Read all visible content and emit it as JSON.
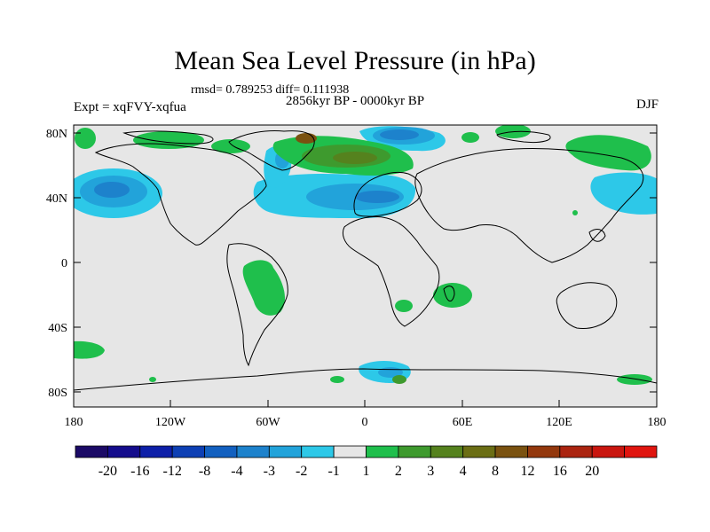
{
  "title": "Mean Sea Level Pressure (in hPa)",
  "stats": "rmsd= 0.789253 diff= 0.111938",
  "period": "2856kyr BP - 0000kyr BP",
  "experiment": "Expt = xqFVY-xqfua",
  "season": "DJF",
  "axes": {
    "lat_labels": [
      "80N",
      "40N",
      "0",
      "40S",
      "80S"
    ],
    "lon_labels": [
      "180",
      "120W",
      "60W",
      "0",
      "60E",
      "120E",
      "180"
    ]
  },
  "colorbar": {
    "colors": [
      "#1b0a66",
      "#140c8c",
      "#0d1fa8",
      "#0d3fb4",
      "#1260c0",
      "#1d82cc",
      "#22a3da",
      "#2dc8e8",
      "#e6e6e6",
      "#1fbf4c",
      "#3e9a2e",
      "#55821e",
      "#6b6e14",
      "#7a5210",
      "#93380d",
      "#ab2410",
      "#c9160f",
      "#e0150f"
    ],
    "labels": [
      "-20",
      "-16",
      "-12",
      "-8",
      "-4",
      "-3",
      "-2",
      "-1",
      "1",
      "2",
      "3",
      "4",
      "8",
      "12",
      "16",
      "20"
    ]
  },
  "colors": {
    "ocean_bg": "#e6e6e6",
    "neg1": "#2dc8e8",
    "neg2": "#22a3da",
    "neg3": "#1d82cc",
    "neg4": "#1260c0",
    "pos1": "#1fbf4c",
    "pos2": "#3e9a2e",
    "pos3": "#55821e",
    "pos4": "#7a5210"
  }
}
